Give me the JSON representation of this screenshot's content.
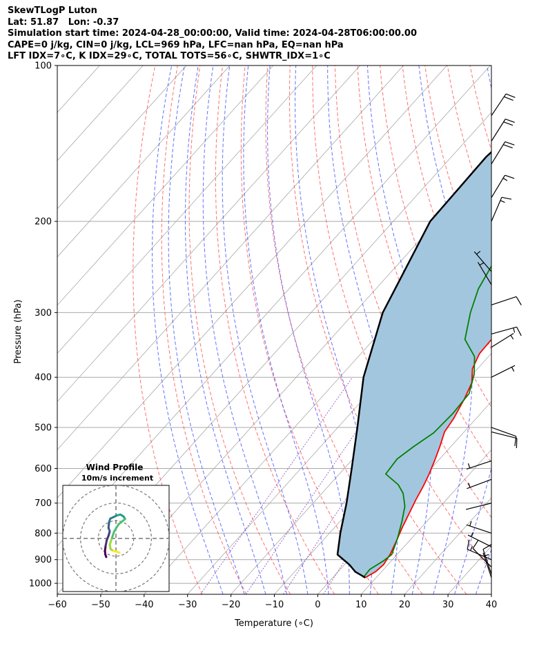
{
  "header": {
    "line1": "SkewTLogP Luton",
    "line2": "Lat: 51.87   Lon: -0.37",
    "line3": "Simulation start time: 2024-04-28_00:00:00, Valid time: 2024-04-28T06:00:00.00",
    "line4": "CAPE=0 j/kg, CIN=0 j/kg, LCL=969 hPa, LFC=nan hPa, EQ=nan hPa",
    "line5": "LFT IDX=7∘C, K IDX=29∘C, TOTAL TOTS=56∘C, SHWTR_IDX=1∘C"
  },
  "chart_data": [
    {
      "type": "line",
      "title": "SkewTLogP Luton",
      "xlabel": "Temperature (∘C)",
      "ylabel": "Pressure (hPa)",
      "xlim": [
        -60,
        40
      ],
      "ylim": [
        1050,
        100
      ],
      "y_scale": "log",
      "x_ticks": [
        "−60",
        "−50",
        "−40",
        "−30",
        "−20",
        "−10",
        "0",
        "10",
        "20",
        "30",
        "40"
      ],
      "y_ticks": [
        "1000",
        "900",
        "800",
        "700",
        "600",
        "500",
        "400",
        "300",
        "200",
        "100"
      ],
      "grid": true,
      "colors": {
        "temperature": "#ff0000",
        "dewpoint": "#008000",
        "parcel": "#000000",
        "shade": "#a3c6df",
        "dry_adiabats": "#ff4040",
        "moist_adiabats": "#3040ff",
        "mixing_ratio": "#8040c0",
        "isotherms": "#a8a8a8"
      },
      "series": [
        {
          "role": "temperature",
          "points": [
            [
              7.5,
              975
            ],
            [
              8.6,
              950
            ],
            [
              9.0,
              920
            ],
            [
              8.4,
              880
            ],
            [
              7.1,
              830
            ],
            [
              5.6,
              780
            ],
            [
              4.2,
              730
            ],
            [
              3.0,
              690
            ],
            [
              1.9,
              650
            ],
            [
              0.7,
              615
            ],
            [
              -0.8,
              580
            ],
            [
              -2.5,
              545
            ],
            [
              -4.5,
              510
            ],
            [
              -5.2,
              480
            ],
            [
              -6.8,
              440
            ],
            [
              -8.4,
              410
            ],
            [
              -11.2,
              385
            ],
            [
              -12.7,
              360
            ],
            [
              -12.9,
              335
            ],
            [
              -11.4,
              315
            ],
            [
              -10.4,
              300
            ],
            [
              -8.0,
              280
            ],
            [
              -6.5,
              265
            ],
            [
              -5.8,
              255
            ],
            [
              -5.3,
              245
            ],
            [
              -6.0,
              230
            ],
            [
              -6.9,
              215
            ],
            [
              -8.1,
              200
            ],
            [
              -8.8,
              185
            ],
            [
              -9.4,
              170
            ],
            [
              -9.8,
              160
            ],
            [
              -10.8,
              140
            ],
            [
              -11.8,
              125
            ],
            [
              -12.5,
              115
            ],
            [
              -13.4,
              100
            ]
          ]
        },
        {
          "role": "dewpoint",
          "points": [
            [
              7.0,
              975
            ],
            [
              6.8,
              940
            ],
            [
              8.2,
              905
            ],
            [
              8.8,
              880
            ],
            [
              6.8,
              820
            ],
            [
              4.3,
              760
            ],
            [
              1.8,
              710
            ],
            [
              -1.3,
              670
            ],
            [
              -4.2,
              645
            ],
            [
              -9.3,
              615
            ],
            [
              -9.8,
              575
            ],
            [
              -8.6,
              545
            ],
            [
              -6.8,
              512
            ],
            [
              -6.4,
              470
            ],
            [
              -6.8,
              430
            ],
            [
              -9.6,
              395
            ],
            [
              -13.2,
              365
            ],
            [
              -19.0,
              338
            ],
            [
              -23.3,
              300
            ],
            [
              -26.4,
              270
            ],
            [
              -28.4,
              240
            ],
            [
              -30.8,
              215
            ],
            [
              -34.0,
              195
            ],
            [
              -35.8,
              180
            ],
            [
              -35.2,
              170
            ],
            [
              -33.0,
              150
            ],
            [
              -30.0,
              130
            ],
            [
              -27.0,
              115
            ],
            [
              -26.0,
              100
            ]
          ]
        },
        {
          "role": "parcel",
          "points": [
            [
              7.5,
              975
            ],
            [
              4.0,
              950
            ],
            [
              1.1,
              920
            ],
            [
              -3.7,
              880
            ],
            [
              -7.5,
              800
            ],
            [
              -12.3,
              700
            ],
            [
              -18.3,
              600
            ],
            [
              -25.5,
              500
            ],
            [
              -34.5,
              400
            ],
            [
              -43.5,
              300
            ],
            [
              -51.5,
              200
            ],
            [
              -52.0,
              150
            ],
            [
              -47.7,
              100
            ]
          ]
        }
      ],
      "inset": {
        "title": "Wind Profile",
        "subtitle": "10m/s increment",
        "type": "hodograph",
        "u_range": [
          -30,
          30
        ],
        "v_range": [
          -30,
          30
        ],
        "rings": [
          10,
          20,
          30
        ],
        "points": [
          [
            -5.5,
            -10.5
          ],
          [
            -6.0,
            -9.0
          ],
          [
            -6.2,
            -7.0
          ],
          [
            -5.8,
            -4.0
          ],
          [
            -5.2,
            -1.0
          ],
          [
            -4.2,
            1.5
          ],
          [
            -3.5,
            4.0
          ],
          [
            -4.2,
            6.0
          ],
          [
            -4.0,
            8.0
          ],
          [
            -3.7,
            9.8
          ],
          [
            -3.2,
            11.2
          ],
          [
            -1.5,
            12.0
          ],
          [
            0.5,
            13.0
          ],
          [
            2.5,
            13.5
          ],
          [
            4.2,
            12.5
          ],
          [
            5.2,
            11.0
          ],
          [
            1.5,
            8.0
          ],
          [
            -1.0,
            4.0
          ],
          [
            -2.5,
            -0.5
          ],
          [
            -3.5,
            -3.5
          ],
          [
            -3.0,
            -6.0
          ],
          [
            -1.5,
            -7.0
          ],
          [
            0.5,
            -7.5
          ],
          [
            2.0,
            -8.0
          ]
        ],
        "colormap": [
          "#440154",
          "#46327e",
          "#365c8d",
          "#277f8e",
          "#1fa187",
          "#4ac16d",
          "#a0da39",
          "#fde725"
        ]
      },
      "wind_barbs": [
        {
          "p": 975,
          "u": -2,
          "v": 6
        },
        {
          "p": 960,
          "u": -4,
          "v": 12
        },
        {
          "p": 930,
          "u": -10,
          "v": 10
        },
        {
          "p": 900,
          "u": -14,
          "v": 6
        },
        {
          "p": 850,
          "u": -8,
          "v": 4
        },
        {
          "p": 800,
          "u": -6,
          "v": 2
        },
        {
          "p": 700,
          "u": -4,
          "v": -1
        },
        {
          "p": 630,
          "u": -8,
          "v": -3
        },
        {
          "p": 580,
          "u": -6,
          "v": -2
        },
        {
          "p": 510,
          "u": 12,
          "v": -3
        },
        {
          "p": 500,
          "u": 14,
          "v": -5
        },
        {
          "p": 400,
          "u": 6,
          "v": 3
        },
        {
          "p": 350,
          "u": 8,
          "v": 5
        },
        {
          "p": 330,
          "u": 18,
          "v": 5
        },
        {
          "p": 290,
          "u": 12,
          "v": 4
        },
        {
          "p": 265,
          "u": -3,
          "v": 5
        },
        {
          "p": 250,
          "u": -6,
          "v": 7
        },
        {
          "p": 200,
          "u": 6,
          "v": 14
        },
        {
          "p": 180,
          "u": 9,
          "v": 15
        },
        {
          "p": 155,
          "u": 11,
          "v": 18
        },
        {
          "p": 140,
          "u": 12,
          "v": 19
        },
        {
          "p": 125,
          "u": 12,
          "v": 18
        }
      ]
    }
  ]
}
